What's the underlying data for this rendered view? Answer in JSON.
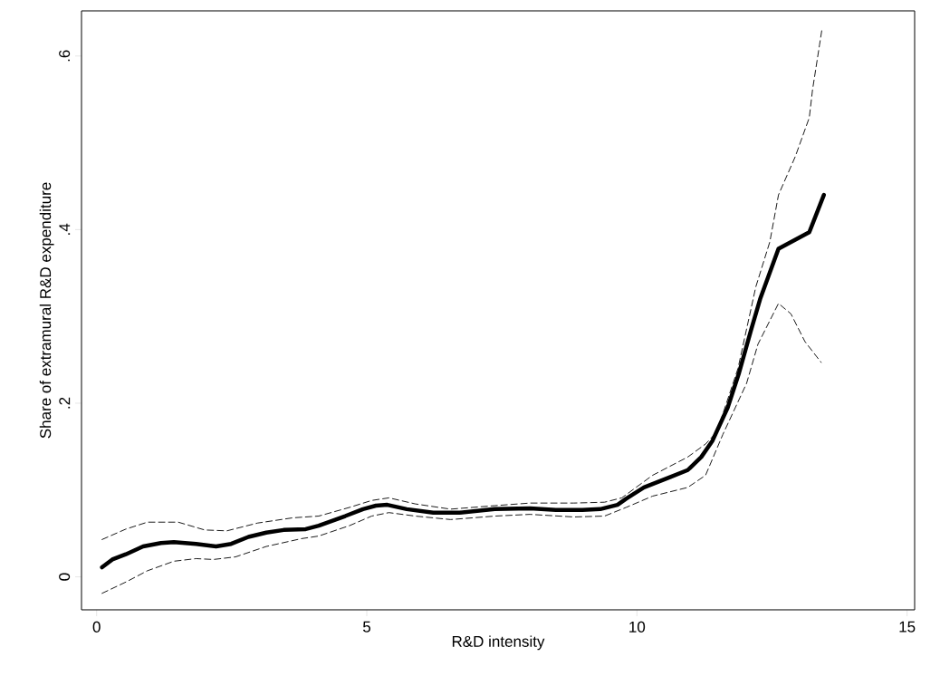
{
  "chart_data": {
    "type": "line",
    "xlabel": "R&D intensity",
    "ylabel": "Share of extramural R&D expenditure",
    "xlim": [
      -0.28,
      15.14
    ],
    "ylim": [
      -0.038,
      0.652
    ],
    "xticks": [
      0,
      5,
      10,
      15
    ],
    "yticks": [
      {
        "value": 0,
        "label": "0"
      },
      {
        "value": 0.2,
        "label": ".2"
      },
      {
        "value": 0.4,
        "label": ".4"
      },
      {
        "value": 0.6,
        "label": ".6"
      }
    ],
    "series": [
      {
        "color": "#000000",
        "line_style": "solid",
        "x": [
          0.1,
          0.29,
          0.54,
          0.86,
          1.19,
          1.43,
          1.84,
          2.21,
          2.49,
          2.81,
          3.14,
          3.46,
          3.87,
          4.11,
          4.6,
          4.93,
          5.17,
          5.38,
          5.74,
          6.23,
          6.72,
          7.37,
          8.02,
          8.5,
          8.99,
          9.32,
          9.64,
          9.8,
          10.13,
          10.62,
          10.94,
          11.19,
          11.4,
          11.68,
          11.89,
          12.11,
          12.28,
          12.62,
          13.19,
          13.46
        ],
        "values": [
          0.011,
          0.02,
          0.026,
          0.035,
          0.039,
          0.04,
          0.038,
          0.035,
          0.038,
          0.046,
          0.051,
          0.054,
          0.055,
          0.059,
          0.07,
          0.078,
          0.082,
          0.083,
          0.078,
          0.074,
          0.074,
          0.078,
          0.079,
          0.077,
          0.077,
          0.078,
          0.083,
          0.09,
          0.103,
          0.115,
          0.123,
          0.138,
          0.157,
          0.195,
          0.235,
          0.284,
          0.32,
          0.378,
          0.397,
          0.44
        ]
      },
      {
        "color": "#000000",
        "line_style": "dashed",
        "x": [
          0.1,
          0.54,
          0.94,
          1.51,
          2.0,
          2.41,
          2.98,
          3.63,
          4.11,
          4.68,
          5.09,
          5.41,
          5.9,
          6.55,
          7.37,
          8.02,
          8.83,
          9.4,
          9.72,
          10.29,
          10.94,
          11.27,
          11.48,
          11.87,
          12.2,
          12.46,
          12.62,
          12.93,
          13.19,
          13.25,
          13.38,
          13.43
        ],
        "values": [
          0.043,
          0.055,
          0.063,
          0.063,
          0.054,
          0.053,
          0.062,
          0.068,
          0.07,
          0.08,
          0.088,
          0.091,
          0.084,
          0.078,
          0.082,
          0.085,
          0.085,
          0.086,
          0.091,
          0.117,
          0.138,
          0.153,
          0.167,
          0.24,
          0.334,
          0.386,
          0.44,
          0.484,
          0.529,
          0.561,
          0.613,
          0.633
        ]
      },
      {
        "color": "#000000",
        "line_style": "dashed",
        "x": [
          0.1,
          0.54,
          0.94,
          1.43,
          1.84,
          2.16,
          2.57,
          3.14,
          3.79,
          4.11,
          4.68,
          5.09,
          5.41,
          5.9,
          6.55,
          7.37,
          8.02,
          8.83,
          9.4,
          9.8,
          10.29,
          10.94,
          11.27,
          11.59,
          12.03,
          12.24,
          12.62,
          12.85,
          13.11,
          13.41
        ],
        "values": [
          -0.019,
          -0.006,
          0.007,
          0.018,
          0.021,
          0.02,
          0.023,
          0.035,
          0.044,
          0.047,
          0.059,
          0.07,
          0.074,
          0.07,
          0.066,
          0.07,
          0.072,
          0.069,
          0.07,
          0.08,
          0.093,
          0.103,
          0.117,
          0.164,
          0.223,
          0.268,
          0.315,
          0.303,
          0.271,
          0.247
        ]
      }
    ]
  }
}
